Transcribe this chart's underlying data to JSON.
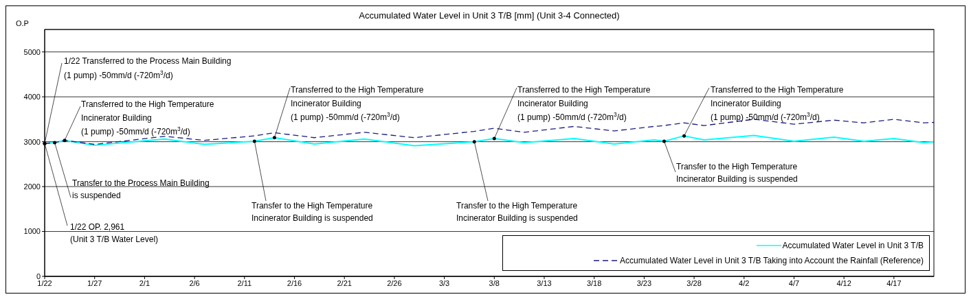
{
  "chart_data": {
    "type": "line",
    "title": "Accumulated Water Level in Unit 3 T/B [mm] (Unit 3-4 Connected)",
    "ylabel": "O.P",
    "xlim": [
      "--01-22",
      "--04-21"
    ],
    "xticks": [
      {
        "value": "--01-22",
        "label": "1/22"
      },
      {
        "value": "--01-27",
        "label": "1/27"
      },
      {
        "value": "--02-01",
        "label": "2/1"
      },
      {
        "value": "--02-06",
        "label": "2/6"
      },
      {
        "value": "--02-11",
        "label": "2/11"
      },
      {
        "value": "--02-16",
        "label": "2/16"
      },
      {
        "value": "--02-21",
        "label": "2/21"
      },
      {
        "value": "--02-26",
        "label": "2/26"
      },
      {
        "value": "--03-03",
        "label": "3/3"
      },
      {
        "value": "--03-08",
        "label": "3/8"
      },
      {
        "value": "--03-13",
        "label": "3/13"
      },
      {
        "value": "--03-18",
        "label": "3/18"
      },
      {
        "value": "--03-23",
        "label": "3/23"
      },
      {
        "value": "--03-28",
        "label": "3/28"
      },
      {
        "value": "--04-02",
        "label": "4/2"
      },
      {
        "value": "--04-07",
        "label": "4/7"
      },
      {
        "value": "--04-12",
        "label": "4/12"
      },
      {
        "value": "--04-17",
        "label": "4/17"
      }
    ],
    "ylim": [
      0,
      5500
    ],
    "yticks": [
      0,
      1000,
      2000,
      3000,
      4000,
      5000
    ],
    "grid": "y",
    "legend": "bottom right",
    "marker": "none",
    "x": [
      "--01-22",
      "--01-23",
      "--01-24",
      "--01-27",
      "--02-03",
      "--02-07",
      "--02-12",
      "--02-14",
      "--02-18",
      "--02-23",
      "--02-28",
      "--03-06",
      "--03-08",
      "--03-11",
      "--03-16",
      "--03-20",
      "--03-24",
      "--03-25",
      "--03-27",
      "--03-29",
      "--04-03",
      "--04-07",
      "--04-11",
      "--04-14",
      "--04-17",
      "--04-20",
      "--04-21"
    ],
    "series": [
      {
        "name": "Accumulated Water Level in Unit 3 T/B",
        "color": "#00ffff",
        "line_style": "solid",
        "values": [
          2961,
          2980,
          3030,
          2920,
          3060,
          2940,
          3010,
          3090,
          2950,
          3060,
          2910,
          3000,
          3070,
          2980,
          3070,
          2950,
          3040,
          3010,
          3130,
          3040,
          3140,
          3010,
          3100,
          3010,
          3070,
          2980,
          3000
        ]
      },
      {
        "name": "Accumulated Water Level in Unit 3 T/B Taking into Account the Rainfall (Reference)",
        "color": "#1a1a80",
        "line_style": "dashed",
        "values": [
          2961,
          2980,
          3030,
          2940,
          3120,
          3030,
          3130,
          3200,
          3090,
          3210,
          3090,
          3230,
          3300,
          3210,
          3340,
          3240,
          3340,
          3360,
          3420,
          3360,
          3500,
          3390,
          3480,
          3420,
          3500,
          3420,
          3430
        ]
      }
    ],
    "annotations": [
      {
        "text": "1/22 Transferred to the Process Main Building\n(1 pump) -50mm/d (-720m$^{3}$/d)",
        "x": "--01-22",
        "y": 2961
      },
      {
        "text": "Transferred to the High Temperature\nIncinerator Building\n(1 pump) -50mm/d (-720m$^{3}$/d)",
        "x": "--01-24",
        "y": 3030
      },
      {
        "text": "Transfer to the Process Main Building\nis suspended",
        "x": "--01-23",
        "y": 2980
      },
      {
        "text": "1/22  OP. 2,961\n(Unit 3 T/B Water Level)",
        "x": "--01-22",
        "y": 2961
      },
      {
        "text": "Transfer to the High Temperature\nIncinerator Building  is suspended",
        "x": "--02-12",
        "y": 3010
      },
      {
        "text": "Transferred to the High Temperature\nIncinerator Building\n(1 pump) -50mm/d (-720m$^{3}$/d)",
        "x": "--02-14",
        "y": 3090
      },
      {
        "text": "Transfer to the High Temperature\nIncinerator Building  is suspended",
        "x": "--03-06",
        "y": 3000
      },
      {
        "text": "Transferred to the High Temperature\nIncinerator Building\n(1 pump) -50mm/d (-720m$^{3}$/d)",
        "x": "--03-08",
        "y": 3070
      },
      {
        "text": "Transfer to the High Temperature\nIncinerator Building  is suspended",
        "x": "--03-25",
        "y": 3010
      },
      {
        "text": "Transferred to the High Temperature\nIncinerator Building\n(1 pump) -50mm/d (-720m$^{3}$/d)",
        "x": "--03-27",
        "y": 3130
      }
    ]
  }
}
